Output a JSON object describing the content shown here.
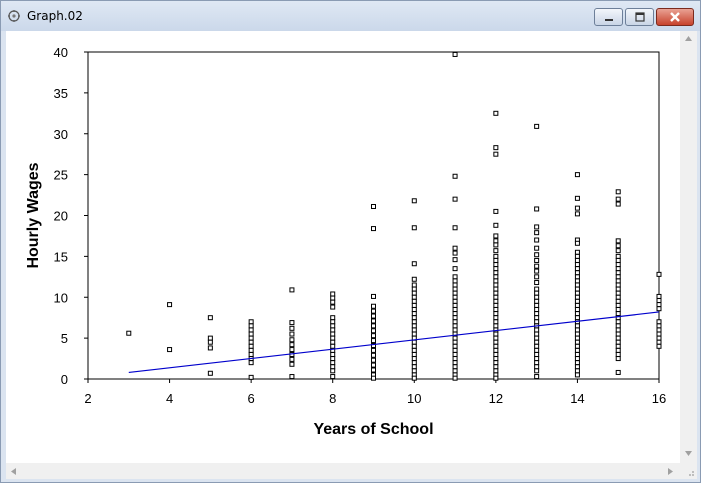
{
  "window": {
    "title": "Graph.02",
    "title_icon": "graph-app-icon",
    "buttons": {
      "minimize": "minimize-icon",
      "maximize": "maximize-icon",
      "close": "close-icon"
    }
  },
  "scrollbars": {
    "vertical": true,
    "horizontal": true
  },
  "colors": {
    "fit_line": "#0000cc",
    "points": "#000000",
    "axis": "#000000"
  },
  "chart_data": {
    "type": "scatter",
    "title": "",
    "xlabel": "Years of School",
    "ylabel": "Hourly Wages",
    "xlim": [
      2,
      16
    ],
    "ylim": [
      0,
      40
    ],
    "xticks": [
      2,
      4,
      6,
      8,
      10,
      12,
      14,
      16
    ],
    "yticks": [
      0,
      5,
      10,
      15,
      20,
      25,
      30,
      35,
      40
    ],
    "grid": false,
    "legend": "none",
    "points": [
      [
        3,
        5.6
      ],
      [
        4,
        9.1
      ],
      [
        4,
        3.6
      ],
      [
        5,
        7.5
      ],
      [
        5,
        5.0
      ],
      [
        5,
        4.5
      ],
      [
        5,
        3.8
      ],
      [
        5,
        0.7
      ],
      [
        6,
        7.0
      ],
      [
        6,
        6.5
      ],
      [
        6,
        6.0
      ],
      [
        6,
        5.5
      ],
      [
        6,
        5.0
      ],
      [
        6,
        4.5
      ],
      [
        6,
        4.0
      ],
      [
        6,
        3.5
      ],
      [
        6,
        3.0
      ],
      [
        6,
        2.5
      ],
      [
        6,
        2.0
      ],
      [
        6,
        0.2
      ],
      [
        7,
        10.9
      ],
      [
        7,
        6.9
      ],
      [
        7,
        6.2
      ],
      [
        7,
        5.5
      ],
      [
        7,
        4.8
      ],
      [
        7,
        4.2
      ],
      [
        7,
        3.6
      ],
      [
        7,
        3.0
      ],
      [
        7,
        2.4
      ],
      [
        7,
        1.8
      ],
      [
        7,
        0.3
      ],
      [
        8,
        10.4
      ],
      [
        8,
        9.9
      ],
      [
        8,
        9.4
      ],
      [
        8,
        8.8
      ],
      [
        8,
        7.5
      ],
      [
        8,
        7.0
      ],
      [
        8,
        6.5
      ],
      [
        8,
        6.0
      ],
      [
        8,
        5.5
      ],
      [
        8,
        5.0
      ],
      [
        8,
        4.5
      ],
      [
        8,
        4.0
      ],
      [
        8,
        3.5
      ],
      [
        8,
        3.0
      ],
      [
        8,
        2.5
      ],
      [
        8,
        2.0
      ],
      [
        8,
        1.5
      ],
      [
        8,
        1.0
      ],
      [
        8,
        0.3
      ],
      [
        9,
        21.1
      ],
      [
        9,
        18.4
      ],
      [
        9,
        10.1
      ],
      [
        9,
        8.9
      ],
      [
        9,
        8.3
      ],
      [
        9,
        7.7
      ],
      [
        9,
        7.1
      ],
      [
        9,
        6.5
      ],
      [
        9,
        5.9
      ],
      [
        9,
        5.3
      ],
      [
        9,
        4.7
      ],
      [
        9,
        4.1
      ],
      [
        9,
        3.5
      ],
      [
        9,
        2.9
      ],
      [
        9,
        2.3
      ],
      [
        9,
        1.7
      ],
      [
        9,
        1.1
      ],
      [
        9,
        0.5
      ],
      [
        9,
        0.1
      ],
      [
        10,
        21.8
      ],
      [
        10,
        18.5
      ],
      [
        10,
        14.1
      ],
      [
        10,
        12.2
      ],
      [
        10,
        11.5
      ],
      [
        10,
        11.0
      ],
      [
        10,
        10.5
      ],
      [
        10,
        10.0
      ],
      [
        10,
        9.5
      ],
      [
        10,
        9.0
      ],
      [
        10,
        8.5
      ],
      [
        10,
        8.0
      ],
      [
        10,
        7.5
      ],
      [
        10,
        7.0
      ],
      [
        10,
        6.5
      ],
      [
        10,
        6.0
      ],
      [
        10,
        5.5
      ],
      [
        10,
        5.0
      ],
      [
        10,
        4.5
      ],
      [
        10,
        4.0
      ],
      [
        10,
        3.5
      ],
      [
        10,
        3.0
      ],
      [
        10,
        2.5
      ],
      [
        10,
        2.0
      ],
      [
        10,
        1.5
      ],
      [
        10,
        1.0
      ],
      [
        10,
        0.5
      ],
      [
        10,
        0.1
      ],
      [
        11,
        39.7
      ],
      [
        11,
        24.8
      ],
      [
        11,
        22.0
      ],
      [
        11,
        18.5
      ],
      [
        11,
        16.0
      ],
      [
        11,
        15.4
      ],
      [
        11,
        14.6
      ],
      [
        11,
        13.5
      ],
      [
        11,
        12.5
      ],
      [
        11,
        12.0
      ],
      [
        11,
        11.5
      ],
      [
        11,
        11.0
      ],
      [
        11,
        10.5
      ],
      [
        11,
        10.0
      ],
      [
        11,
        9.5
      ],
      [
        11,
        9.0
      ],
      [
        11,
        8.5
      ],
      [
        11,
        8.0
      ],
      [
        11,
        7.5
      ],
      [
        11,
        7.0
      ],
      [
        11,
        6.5
      ],
      [
        11,
        6.0
      ],
      [
        11,
        5.5
      ],
      [
        11,
        5.0
      ],
      [
        11,
        4.5
      ],
      [
        11,
        4.0
      ],
      [
        11,
        3.5
      ],
      [
        11,
        3.0
      ],
      [
        11,
        2.5
      ],
      [
        11,
        2.0
      ],
      [
        11,
        1.5
      ],
      [
        11,
        1.0
      ],
      [
        11,
        0.5
      ],
      [
        11,
        0.1
      ],
      [
        12,
        32.5
      ],
      [
        12,
        28.3
      ],
      [
        12,
        27.5
      ],
      [
        12,
        20.5
      ],
      [
        12,
        18.8
      ],
      [
        12,
        17.5
      ],
      [
        12,
        16.9
      ],
      [
        12,
        16.4
      ],
      [
        12,
        15.7
      ],
      [
        12,
        15.0
      ],
      [
        12,
        14.5
      ],
      [
        12,
        14.0
      ],
      [
        12,
        13.5
      ],
      [
        12,
        13.0
      ],
      [
        12,
        12.5
      ],
      [
        12,
        12.0
      ],
      [
        12,
        11.5
      ],
      [
        12,
        11.0
      ],
      [
        12,
        10.5
      ],
      [
        12,
        10.0
      ],
      [
        12,
        9.5
      ],
      [
        12,
        9.0
      ],
      [
        12,
        8.5
      ],
      [
        12,
        8.0
      ],
      [
        12,
        7.5
      ],
      [
        12,
        7.0
      ],
      [
        12,
        6.5
      ],
      [
        12,
        6.0
      ],
      [
        12,
        5.5
      ],
      [
        12,
        5.0
      ],
      [
        12,
        4.5
      ],
      [
        12,
        4.0
      ],
      [
        12,
        3.5
      ],
      [
        12,
        3.0
      ],
      [
        12,
        2.5
      ],
      [
        12,
        2.0
      ],
      [
        12,
        1.5
      ],
      [
        12,
        1.0
      ],
      [
        12,
        0.5
      ],
      [
        12,
        0.1
      ],
      [
        13,
        30.9
      ],
      [
        13,
        20.8
      ],
      [
        13,
        18.6
      ],
      [
        13,
        17.9
      ],
      [
        13,
        17.0
      ],
      [
        13,
        16.0
      ],
      [
        13,
        15.2
      ],
      [
        13,
        14.5
      ],
      [
        13,
        13.8
      ],
      [
        13,
        13.2
      ],
      [
        13,
        12.5
      ],
      [
        13,
        11.8
      ],
      [
        13,
        11.0
      ],
      [
        13,
        10.5
      ],
      [
        13,
        10.0
      ],
      [
        13,
        9.5
      ],
      [
        13,
        9.0
      ],
      [
        13,
        8.5
      ],
      [
        13,
        8.0
      ],
      [
        13,
        7.5
      ],
      [
        13,
        7.0
      ],
      [
        13,
        6.5
      ],
      [
        13,
        6.0
      ],
      [
        13,
        5.5
      ],
      [
        13,
        5.0
      ],
      [
        13,
        4.5
      ],
      [
        13,
        4.0
      ],
      [
        13,
        3.5
      ],
      [
        13,
        3.0
      ],
      [
        13,
        2.5
      ],
      [
        13,
        2.0
      ],
      [
        13,
        1.5
      ],
      [
        13,
        1.0
      ],
      [
        13,
        0.3
      ],
      [
        14,
        25.0
      ],
      [
        14,
        22.1
      ],
      [
        14,
        20.9
      ],
      [
        14,
        20.2
      ],
      [
        14,
        17.0
      ],
      [
        14,
        16.6
      ],
      [
        14,
        15.5
      ],
      [
        14,
        15.0
      ],
      [
        14,
        14.5
      ],
      [
        14,
        14.0
      ],
      [
        14,
        13.5
      ],
      [
        14,
        13.0
      ],
      [
        14,
        12.5
      ],
      [
        14,
        12.0
      ],
      [
        14,
        11.5
      ],
      [
        14,
        11.0
      ],
      [
        14,
        10.5
      ],
      [
        14,
        10.0
      ],
      [
        14,
        9.5
      ],
      [
        14,
        9.0
      ],
      [
        14,
        8.5
      ],
      [
        14,
        8.0
      ],
      [
        14,
        7.5
      ],
      [
        14,
        7.0
      ],
      [
        14,
        6.5
      ],
      [
        14,
        6.0
      ],
      [
        14,
        5.5
      ],
      [
        14,
        5.0
      ],
      [
        14,
        4.5
      ],
      [
        14,
        4.0
      ],
      [
        14,
        3.5
      ],
      [
        14,
        3.0
      ],
      [
        14,
        2.5
      ],
      [
        14,
        2.0
      ],
      [
        14,
        1.5
      ],
      [
        14,
        1.0
      ],
      [
        14,
        0.5
      ],
      [
        15,
        22.9
      ],
      [
        15,
        22.0
      ],
      [
        15,
        21.4
      ],
      [
        15,
        16.9
      ],
      [
        15,
        16.3
      ],
      [
        15,
        15.7
      ],
      [
        15,
        15.0
      ],
      [
        15,
        14.5
      ],
      [
        15,
        14.0
      ],
      [
        15,
        13.5
      ],
      [
        15,
        13.0
      ],
      [
        15,
        12.5
      ],
      [
        15,
        12.0
      ],
      [
        15,
        11.5
      ],
      [
        15,
        11.0
      ],
      [
        15,
        10.5
      ],
      [
        15,
        10.0
      ],
      [
        15,
        9.5
      ],
      [
        15,
        9.0
      ],
      [
        15,
        8.5
      ],
      [
        15,
        8.0
      ],
      [
        15,
        7.5
      ],
      [
        15,
        7.0
      ],
      [
        15,
        6.5
      ],
      [
        15,
        6.0
      ],
      [
        15,
        5.5
      ],
      [
        15,
        5.0
      ],
      [
        15,
        4.5
      ],
      [
        15,
        4.0
      ],
      [
        15,
        3.5
      ],
      [
        15,
        3.0
      ],
      [
        15,
        2.5
      ],
      [
        15,
        0.8
      ],
      [
        16,
        12.8
      ],
      [
        16,
        10.1
      ],
      [
        16,
        9.6
      ],
      [
        16,
        9.1
      ],
      [
        16,
        8.6
      ],
      [
        16,
        7.0
      ],
      [
        16,
        6.5
      ],
      [
        16,
        6.0
      ],
      [
        16,
        5.5
      ],
      [
        16,
        5.0
      ],
      [
        16,
        4.5
      ],
      [
        16,
        4.0
      ]
    ],
    "fit_line": {
      "x": [
        3,
        16
      ],
      "y": [
        0.8,
        8.2
      ]
    }
  }
}
